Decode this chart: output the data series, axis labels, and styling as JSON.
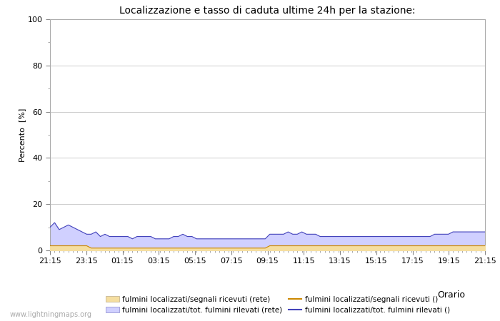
{
  "title": "Localizzazione e tasso di caduta ultime 24h per la stazione:",
  "xlabel": "Orario",
  "ylabel": "Percento  [%]",
  "xlim_labels": [
    "21:15",
    "23:15",
    "01:15",
    "03:15",
    "05:15",
    "07:15",
    "09:15",
    "11:15",
    "13:15",
    "15:15",
    "17:15",
    "19:15",
    "21:15"
  ],
  "ylim": [
    0,
    100
  ],
  "yticks_major": [
    0,
    20,
    40,
    60,
    80,
    100
  ],
  "yticks_minor": [
    10,
    30,
    50,
    70,
    90
  ],
  "background_color": "#ffffff",
  "plot_bg_color": "#ffffff",
  "watermark": "www.lightningmaps.org",
  "fill_blue_color": "#d0d0ff",
  "fill_yellow_color": "#f5dea0",
  "line_blue_color": "#4444bb",
  "line_orange_color": "#cc8800",
  "blue_data": [
    10,
    12,
    9,
    10,
    11,
    10,
    9,
    8,
    7,
    7,
    8,
    6,
    7,
    6,
    6,
    6,
    6,
    6,
    5,
    6,
    6,
    6,
    6,
    5,
    5,
    5,
    5,
    6,
    6,
    7,
    6,
    6,
    5,
    5,
    5,
    5,
    5,
    5,
    5,
    5,
    5,
    5,
    5,
    5,
    5,
    5,
    5,
    5,
    7,
    7,
    7,
    7,
    8,
    7,
    7,
    8,
    7,
    7,
    7,
    6,
    6,
    6,
    6,
    6,
    6,
    6,
    6,
    6,
    6,
    6,
    6,
    6,
    6,
    6,
    6,
    6,
    6,
    6,
    6,
    6,
    6,
    6,
    6,
    6,
    7,
    7,
    7,
    7,
    8,
    8,
    8,
    8,
    8,
    8,
    8,
    8
  ],
  "yellow_data": [
    2,
    2,
    2,
    2,
    2,
    2,
    2,
    2,
    2,
    1,
    1,
    1,
    1,
    1,
    1,
    1,
    1,
    1,
    1,
    1,
    1,
    1,
    1,
    1,
    1,
    1,
    1,
    1,
    1,
    1,
    1,
    1,
    1,
    1,
    1,
    1,
    1,
    1,
    1,
    1,
    1,
    1,
    1,
    1,
    1,
    1,
    1,
    1,
    2,
    2,
    2,
    2,
    2,
    2,
    2,
    2,
    2,
    2,
    2,
    2,
    2,
    2,
    2,
    2,
    2,
    2,
    2,
    2,
    2,
    2,
    2,
    2,
    2,
    2,
    2,
    2,
    2,
    2,
    2,
    2,
    2,
    2,
    2,
    2,
    2,
    2,
    2,
    2,
    2,
    2,
    2,
    2,
    2,
    2,
    2,
    2
  ],
  "legend_labels": [
    "fulmini localizzati/segnali ricevuti (rete)",
    "fulmini localizzati/segnali ricevuti ()",
    "fulmini localizzati/tot. fulmini rilevati (rete)",
    "fulmini localizzati/tot. fulmini rilevati ()"
  ]
}
